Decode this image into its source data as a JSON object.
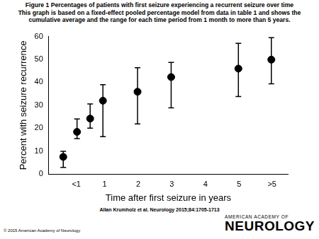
{
  "chart_data": {
    "type": "scatter",
    "title": "Figure 1 Percentages of patients with first seizure experiencing a recurrent seizure over time",
    "subtitle": "This graph is based on a fixed-effect pooled percentage model from data in table 1 and shows the cumulative average and the range for each time period from 1 month to more than 5 years.",
    "x_label": "Time after first seizure in years",
    "y_label": "Percent with seizure recurrence",
    "x": [
      -0.23,
      0.18,
      0.57,
      0.95,
      1.98,
      2.98,
      4.98,
      5.96
    ],
    "values": [
      7.5,
      18.4,
      24.2,
      32,
      35.9,
      42.3,
      46,
      49.9
    ],
    "lower": [
      2.9,
      15.5,
      20,
      16.3,
      21.9,
      28.9,
      33.8,
      39.4
    ],
    "upper": [
      9.9,
      24,
      30.6,
      39,
      46.4,
      48.7,
      57,
      59.5
    ],
    "color": "#000000",
    "marker": "circle",
    "xlim": [
      -0.66,
      6.45
    ],
    "xticks": [
      {
        "value": 0.16,
        "label": "<1"
      },
      1,
      2,
      3,
      4,
      5,
      {
        "value": 5.98,
        "label": ">5"
      }
    ],
    "ylim": [
      0,
      60
    ],
    "yticks": [
      0,
      10,
      20,
      30,
      40,
      50,
      60
    ],
    "grid": false
  },
  "citation": "Allan Krumholz et al. Neurology 2015;84:1705-1713",
  "copyright": "© 2015 American Academy of Neurology",
  "logo": [
    "AMERICAN ACADEMY OF",
    "NEUROLOGY"
  ]
}
